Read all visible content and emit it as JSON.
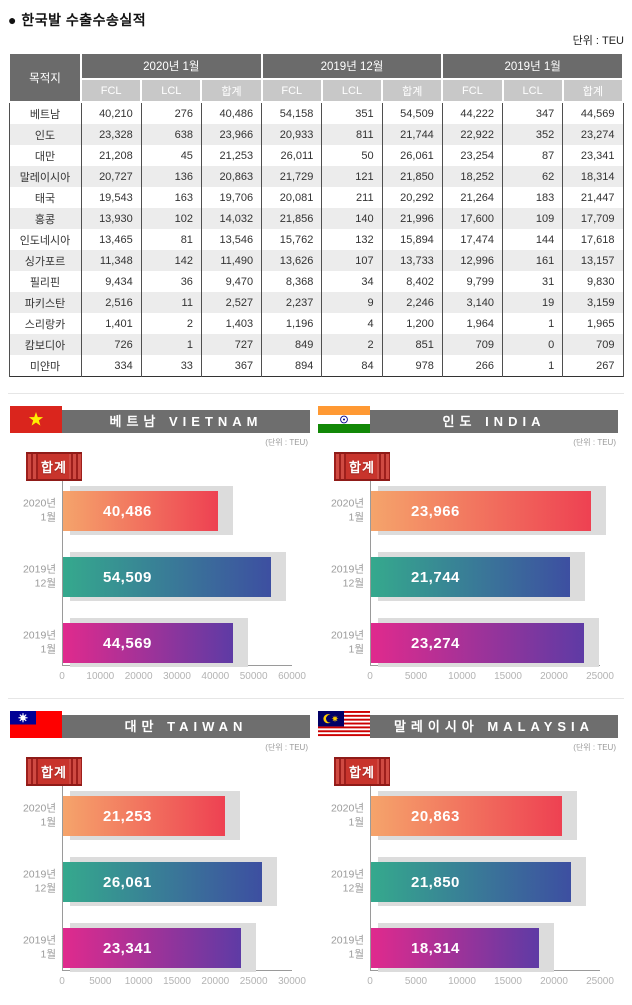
{
  "page": {
    "title": "● 한국발 수출수송실적",
    "unit_label": "단위 : TEU"
  },
  "table": {
    "destination_header": "목적지",
    "month_groups": [
      "2020년 1월",
      "2019년 12월",
      "2019년 1월"
    ],
    "sub_headers": [
      "FCL",
      "LCL",
      "합계"
    ],
    "rows": [
      {
        "destination": "베트남",
        "values": [
          "40,210",
          "276",
          "40,486",
          "54,158",
          "351",
          "54,509",
          "44,222",
          "347",
          "44,569"
        ]
      },
      {
        "destination": "인도",
        "values": [
          "23,328",
          "638",
          "23,966",
          "20,933",
          "811",
          "21,744",
          "22,922",
          "352",
          "23,274"
        ]
      },
      {
        "destination": "대만",
        "values": [
          "21,208",
          "45",
          "21,253",
          "26,011",
          "50",
          "26,061",
          "23,254",
          "87",
          "23,341"
        ]
      },
      {
        "destination": "말레이시아",
        "values": [
          "20,727",
          "136",
          "20,863",
          "21,729",
          "121",
          "21,850",
          "18,252",
          "62",
          "18,314"
        ]
      },
      {
        "destination": "태국",
        "values": [
          "19,543",
          "163",
          "19,706",
          "20,081",
          "211",
          "20,292",
          "21,264",
          "183",
          "21,447"
        ]
      },
      {
        "destination": "홍콩",
        "values": [
          "13,930",
          "102",
          "14,032",
          "21,856",
          "140",
          "21,996",
          "17,600",
          "109",
          "17,709"
        ]
      },
      {
        "destination": "인도네시아",
        "values": [
          "13,465",
          "81",
          "13,546",
          "15,762",
          "132",
          "15,894",
          "17,474",
          "144",
          "17,618"
        ]
      },
      {
        "destination": "싱가포르",
        "values": [
          "11,348",
          "142",
          "11,490",
          "13,626",
          "107",
          "13,733",
          "12,996",
          "161",
          "13,157"
        ]
      },
      {
        "destination": "필리핀",
        "values": [
          "9,434",
          "36",
          "9,470",
          "8,368",
          "34",
          "8,402",
          "9,799",
          "31",
          "9,830"
        ]
      },
      {
        "destination": "파키스탄",
        "values": [
          "2,516",
          "11",
          "2,527",
          "2,237",
          "9",
          "2,246",
          "3,140",
          "19",
          "3,159"
        ]
      },
      {
        "destination": "스리랑카",
        "values": [
          "1,401",
          "2",
          "1,403",
          "1,196",
          "4",
          "1,200",
          "1,964",
          "1",
          "1,965"
        ]
      },
      {
        "destination": "캄보디아",
        "values": [
          "726",
          "1",
          "727",
          "849",
          "2",
          "851",
          "709",
          "0",
          "709"
        ]
      },
      {
        "destination": "미얀마",
        "values": [
          "334",
          "33",
          "367",
          "894",
          "84",
          "978",
          "266",
          "1",
          "267"
        ]
      }
    ]
  },
  "style": {
    "header_bg": "#6b6b6b",
    "subheader_bg": "#c8c8c8",
    "alt_row_bg": "#ececec",
    "badge_red": "#c8342c",
    "bar_shadow": "#dcdcdc",
    "bar_gradients": [
      [
        "#f5a46b",
        "#ee4152"
      ],
      [
        "#35a98d",
        "#3d4fa1"
      ],
      [
        "#e02a8d",
        "#5e3ba5"
      ]
    ]
  },
  "chart_data": [
    {
      "type": "bar",
      "orientation": "horizontal",
      "title": "베트남 VIETNAM",
      "flag_icon": "vietnam-flag-icon",
      "unit": "(단위 : TEU)",
      "legend": "합계",
      "categories": [
        "2020년 1월",
        "2019년 12월",
        "2019년 1월"
      ],
      "values": [
        40486,
        54509,
        44569
      ],
      "value_labels": [
        "40,486",
        "54,509",
        "44,569"
      ],
      "xlim": [
        0,
        60000
      ],
      "xticks": [
        0,
        10000,
        20000,
        30000,
        40000,
        50000,
        60000
      ],
      "grid": false,
      "legend_position": "top-left"
    },
    {
      "type": "bar",
      "orientation": "horizontal",
      "title": "인도 INDIA",
      "flag_icon": "india-flag-icon",
      "unit": "(단위 : TEU)",
      "legend": "합계",
      "categories": [
        "2020년 1월",
        "2019년 12월",
        "2019년 1월"
      ],
      "values": [
        23966,
        21744,
        23274
      ],
      "value_labels": [
        "23,966",
        "21,744",
        "23,274"
      ],
      "xlim": [
        0,
        25000
      ],
      "xticks": [
        0,
        5000,
        10000,
        15000,
        20000,
        25000
      ],
      "grid": false,
      "legend_position": "top-left"
    },
    {
      "type": "bar",
      "orientation": "horizontal",
      "title": "대만 TAIWAN",
      "flag_icon": "taiwan-flag-icon",
      "unit": "(단위 : TEU)",
      "legend": "합계",
      "categories": [
        "2020년 1월",
        "2019년 12월",
        "2019년 1월"
      ],
      "values": [
        21253,
        26061,
        23341
      ],
      "value_labels": [
        "21,253",
        "26,061",
        "23,341"
      ],
      "xlim": [
        0,
        30000
      ],
      "xticks": [
        0,
        5000,
        10000,
        15000,
        20000,
        25000,
        30000
      ],
      "grid": false,
      "legend_position": "top-left"
    },
    {
      "type": "bar",
      "orientation": "horizontal",
      "title": "말레이시아 MALAYSIA",
      "flag_icon": "malaysia-flag-icon",
      "unit": "(단위 : TEU)",
      "legend": "합계",
      "categories": [
        "2020년 1월",
        "2019년 12월",
        "2019년 1월"
      ],
      "values": [
        20863,
        21850,
        18314
      ],
      "value_labels": [
        "20,863",
        "21,850",
        "18,314"
      ],
      "xlim": [
        0,
        25000
      ],
      "xticks": [
        0,
        5000,
        10000,
        15000,
        20000,
        25000
      ],
      "grid": false,
      "legend_position": "top-left"
    }
  ]
}
